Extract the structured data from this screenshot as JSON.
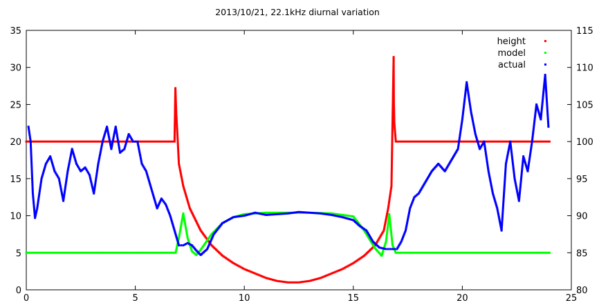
{
  "chart_data": {
    "type": "scatter",
    "title": "2013/10/21, 22.1kHz diurnal variation",
    "xlabel": "",
    "ylabel": "",
    "y2label": "",
    "xlim": [
      0,
      25
    ],
    "ylim": [
      0,
      35
    ],
    "y2lim": [
      80,
      115
    ],
    "xticks": [
      0,
      5,
      10,
      15,
      20,
      25
    ],
    "yticks": [
      0,
      5,
      10,
      15,
      20,
      25,
      30,
      35
    ],
    "y2ticks": [
      80,
      85,
      90,
      95,
      100,
      105,
      110,
      115
    ],
    "grid": false,
    "legend_position": "top-right",
    "series": [
      {
        "name": "height",
        "axis": "y2",
        "color": "#ff0000",
        "points": [
          [
            0,
            100
          ],
          [
            6.8,
            100
          ],
          [
            6.84,
            107.2
          ],
          [
            6.88,
            103.7
          ],
          [
            6.92,
            101.6
          ],
          [
            7.0,
            97
          ],
          [
            7.2,
            94
          ],
          [
            7.5,
            91
          ],
          [
            8.0,
            88
          ],
          [
            8.5,
            86
          ],
          [
            9.0,
            84.6
          ],
          [
            9.5,
            83.6
          ],
          [
            10.0,
            82.8
          ],
          [
            10.5,
            82.2
          ],
          [
            11.0,
            81.6
          ],
          [
            11.5,
            81.2
          ],
          [
            12.0,
            81.0
          ],
          [
            12.5,
            81.0
          ],
          [
            13.0,
            81.2
          ],
          [
            13.5,
            81.6
          ],
          [
            14.0,
            82.2
          ],
          [
            14.5,
            82.8
          ],
          [
            15.0,
            83.6
          ],
          [
            15.5,
            84.6
          ],
          [
            16.0,
            86
          ],
          [
            16.4,
            88
          ],
          [
            16.6,
            91
          ],
          [
            16.75,
            94
          ],
          [
            16.85,
            111.4
          ],
          [
            16.86,
            105.3
          ],
          [
            16.88,
            102.5
          ],
          [
            16.95,
            100
          ],
          [
            24,
            100
          ]
        ]
      },
      {
        "name": "model",
        "axis": "y",
        "color": "#00ff00",
        "points": [
          [
            0,
            5
          ],
          [
            6.85,
            5
          ],
          [
            7.0,
            7
          ],
          [
            7.2,
            10.3
          ],
          [
            7.4,
            7
          ],
          [
            7.6,
            5.2
          ],
          [
            7.8,
            4.7
          ],
          [
            8.0,
            5.4
          ],
          [
            8.5,
            7.5
          ],
          [
            9.0,
            9.0
          ],
          [
            9.5,
            9.8
          ],
          [
            10.0,
            10.2
          ],
          [
            11.0,
            10.4
          ],
          [
            12.0,
            10.4
          ],
          [
            13.0,
            10.4
          ],
          [
            14.0,
            10.3
          ],
          [
            15.0,
            9.9
          ],
          [
            15.5,
            8.0
          ],
          [
            16.0,
            5.6
          ],
          [
            16.3,
            4.6
          ],
          [
            16.5,
            6.5
          ],
          [
            16.65,
            10.2
          ],
          [
            16.8,
            6.0
          ],
          [
            16.95,
            5.0
          ],
          [
            24,
            5
          ]
        ]
      },
      {
        "name": "actual",
        "axis": "y",
        "color": "#0000ff",
        "points": [
          [
            0.1,
            22
          ],
          [
            0.2,
            20
          ],
          [
            0.3,
            13
          ],
          [
            0.4,
            9.7
          ],
          [
            0.5,
            11
          ],
          [
            0.7,
            15
          ],
          [
            0.9,
            17
          ],
          [
            1.1,
            18
          ],
          [
            1.3,
            16
          ],
          [
            1.5,
            15
          ],
          [
            1.7,
            12
          ],
          [
            1.9,
            16
          ],
          [
            2.1,
            19
          ],
          [
            2.3,
            17
          ],
          [
            2.5,
            16
          ],
          [
            2.7,
            16.5
          ],
          [
            2.9,
            15.5
          ],
          [
            3.1,
            13
          ],
          [
            3.3,
            17
          ],
          [
            3.5,
            20
          ],
          [
            3.7,
            22
          ],
          [
            3.9,
            19
          ],
          [
            4.1,
            22
          ],
          [
            4.3,
            18.5
          ],
          [
            4.5,
            19
          ],
          [
            4.7,
            21
          ],
          [
            4.9,
            20
          ],
          [
            5.1,
            20
          ],
          [
            5.3,
            17
          ],
          [
            5.5,
            16
          ],
          [
            5.8,
            13
          ],
          [
            6.0,
            11
          ],
          [
            6.2,
            12.3
          ],
          [
            6.4,
            11.5
          ],
          [
            6.6,
            10
          ],
          [
            6.8,
            8
          ],
          [
            7.0,
            6
          ],
          [
            7.2,
            6
          ],
          [
            7.4,
            6.3
          ],
          [
            7.6,
            6
          ],
          [
            7.8,
            5.3
          ],
          [
            8.0,
            4.7
          ],
          [
            8.3,
            5.5
          ],
          [
            8.6,
            7.5
          ],
          [
            9.0,
            9.0
          ],
          [
            9.5,
            9.8
          ],
          [
            10.0,
            10.0
          ],
          [
            10.5,
            10.4
          ],
          [
            11.0,
            10.1
          ],
          [
            11.5,
            10.2
          ],
          [
            12.0,
            10.3
          ],
          [
            12.5,
            10.5
          ],
          [
            13.0,
            10.4
          ],
          [
            13.5,
            10.3
          ],
          [
            14.0,
            10.1
          ],
          [
            14.5,
            9.8
          ],
          [
            15.0,
            9.4
          ],
          [
            15.3,
            8.6
          ],
          [
            15.6,
            8.0
          ],
          [
            15.9,
            6.5
          ],
          [
            16.2,
            5.7
          ],
          [
            16.5,
            5.5
          ],
          [
            16.8,
            5.5
          ],
          [
            17.0,
            5.5
          ],
          [
            17.2,
            6.5
          ],
          [
            17.4,
            8
          ],
          [
            17.6,
            11
          ],
          [
            17.8,
            12.5
          ],
          [
            18.0,
            13
          ],
          [
            18.3,
            14.5
          ],
          [
            18.6,
            16
          ],
          [
            18.9,
            17
          ],
          [
            19.2,
            16
          ],
          [
            19.5,
            17.5
          ],
          [
            19.8,
            19
          ],
          [
            20.0,
            23
          ],
          [
            20.2,
            28
          ],
          [
            20.4,
            24
          ],
          [
            20.6,
            21
          ],
          [
            20.8,
            19
          ],
          [
            21.0,
            20
          ],
          [
            21.2,
            16
          ],
          [
            21.4,
            13
          ],
          [
            21.6,
            11
          ],
          [
            21.8,
            8
          ],
          [
            22.0,
            17
          ],
          [
            22.2,
            20
          ],
          [
            22.4,
            15
          ],
          [
            22.6,
            12
          ],
          [
            22.8,
            18
          ],
          [
            23.0,
            16
          ],
          [
            23.2,
            20
          ],
          [
            23.4,
            25
          ],
          [
            23.6,
            23
          ],
          [
            23.8,
            29
          ],
          [
            23.95,
            22
          ]
        ]
      }
    ]
  }
}
